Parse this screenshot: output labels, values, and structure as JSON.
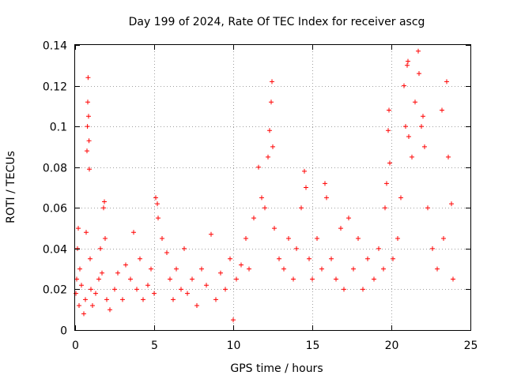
{
  "chart_data": {
    "type": "scatter",
    "title": "Day 199 of 2024, Rate Of TEC Index for receiver ascg",
    "xlabel": "GPS time / hours",
    "ylabel": "ROTI / TECUs",
    "xlim": [
      0,
      25
    ],
    "ylim": [
      0,
      0.14
    ],
    "xticks": [
      0,
      5,
      10,
      15,
      20,
      25
    ],
    "xtick_labels": [
      "0",
      "5",
      "10",
      "15",
      "20",
      "25"
    ],
    "yticks": [
      0,
      0.02,
      0.04,
      0.06,
      0.08,
      0.1,
      0.12,
      0.14
    ],
    "ytick_labels": [
      "0",
      "0.02",
      "0.04",
      "0.06",
      "0.08",
      "0.1",
      "0.12",
      "0.14"
    ],
    "grid": true,
    "marker": "plus",
    "color": "#ff0000",
    "series": [
      {
        "name": "ROTI",
        "points": [
          [
            0.05,
            0.018
          ],
          [
            0.1,
            0.025
          ],
          [
            0.15,
            0.04
          ],
          [
            0.2,
            0.05
          ],
          [
            0.25,
            0.012
          ],
          [
            0.3,
            0.03
          ],
          [
            0.4,
            0.022
          ],
          [
            0.55,
            0.008
          ],
          [
            0.65,
            0.015
          ],
          [
            0.7,
            0.048
          ],
          [
            0.75,
            0.088
          ],
          [
            0.78,
            0.1
          ],
          [
            0.8,
            0.112
          ],
          [
            0.82,
            0.124
          ],
          [
            0.85,
            0.105
          ],
          [
            0.88,
            0.093
          ],
          [
            0.9,
            0.079
          ],
          [
            0.95,
            0.035
          ],
          [
            1.0,
            0.02
          ],
          [
            1.1,
            0.012
          ],
          [
            1.3,
            0.018
          ],
          [
            1.5,
            0.025
          ],
          [
            1.6,
            0.04
          ],
          [
            1.7,
            0.028
          ],
          [
            1.8,
            0.06
          ],
          [
            1.85,
            0.063
          ],
          [
            1.9,
            0.045
          ],
          [
            2.0,
            0.015
          ],
          [
            2.2,
            0.01
          ],
          [
            2.5,
            0.02
          ],
          [
            2.7,
            0.028
          ],
          [
            3.0,
            0.015
          ],
          [
            3.2,
            0.032
          ],
          [
            3.5,
            0.025
          ],
          [
            3.7,
            0.048
          ],
          [
            3.9,
            0.02
          ],
          [
            4.1,
            0.035
          ],
          [
            4.3,
            0.015
          ],
          [
            4.6,
            0.022
          ],
          [
            4.8,
            0.03
          ],
          [
            5.0,
            0.018
          ],
          [
            5.1,
            0.065
          ],
          [
            5.2,
            0.062
          ],
          [
            5.25,
            0.055
          ],
          [
            5.5,
            0.045
          ],
          [
            5.8,
            0.038
          ],
          [
            6.0,
            0.025
          ],
          [
            6.2,
            0.015
          ],
          [
            6.4,
            0.03
          ],
          [
            6.7,
            0.02
          ],
          [
            6.9,
            0.04
          ],
          [
            7.1,
            0.018
          ],
          [
            7.4,
            0.025
          ],
          [
            7.7,
            0.012
          ],
          [
            8.0,
            0.03
          ],
          [
            8.3,
            0.022
          ],
          [
            8.6,
            0.047
          ],
          [
            8.9,
            0.015
          ],
          [
            9.2,
            0.028
          ],
          [
            9.5,
            0.02
          ],
          [
            9.8,
            0.035
          ],
          [
            10.0,
            0.005
          ],
          [
            10.2,
            0.025
          ],
          [
            10.5,
            0.032
          ],
          [
            10.8,
            0.045
          ],
          [
            11.0,
            0.03
          ],
          [
            11.3,
            0.055
          ],
          [
            11.6,
            0.08
          ],
          [
            11.8,
            0.065
          ],
          [
            12.0,
            0.06
          ],
          [
            12.2,
            0.085
          ],
          [
            12.3,
            0.098
          ],
          [
            12.4,
            0.112
          ],
          [
            12.45,
            0.122
          ],
          [
            12.5,
            0.09
          ],
          [
            12.6,
            0.05
          ],
          [
            12.9,
            0.035
          ],
          [
            13.2,
            0.03
          ],
          [
            13.5,
            0.045
          ],
          [
            13.8,
            0.025
          ],
          [
            14.0,
            0.04
          ],
          [
            14.3,
            0.06
          ],
          [
            14.5,
            0.078
          ],
          [
            14.6,
            0.07
          ],
          [
            14.8,
            0.035
          ],
          [
            15.0,
            0.025
          ],
          [
            15.3,
            0.045
          ],
          [
            15.6,
            0.03
          ],
          [
            15.8,
            0.072
          ],
          [
            15.9,
            0.065
          ],
          [
            16.2,
            0.035
          ],
          [
            16.5,
            0.025
          ],
          [
            16.8,
            0.05
          ],
          [
            17.0,
            0.02
          ],
          [
            17.3,
            0.055
          ],
          [
            17.6,
            0.03
          ],
          [
            17.9,
            0.045
          ],
          [
            18.2,
            0.02
          ],
          [
            18.5,
            0.035
          ],
          [
            18.9,
            0.025
          ],
          [
            19.2,
            0.04
          ],
          [
            19.5,
            0.03
          ],
          [
            19.6,
            0.06
          ],
          [
            19.7,
            0.072
          ],
          [
            19.8,
            0.098
          ],
          [
            19.85,
            0.108
          ],
          [
            19.9,
            0.082
          ],
          [
            20.1,
            0.035
          ],
          [
            20.4,
            0.045
          ],
          [
            20.6,
            0.065
          ],
          [
            20.8,
            0.12
          ],
          [
            20.9,
            0.1
          ],
          [
            21.0,
            0.13
          ],
          [
            21.05,
            0.132
          ],
          [
            21.1,
            0.095
          ],
          [
            21.3,
            0.085
          ],
          [
            21.5,
            0.112
          ],
          [
            21.7,
            0.137
          ],
          [
            21.75,
            0.126
          ],
          [
            21.9,
            0.1
          ],
          [
            22.0,
            0.105
          ],
          [
            22.1,
            0.09
          ],
          [
            22.3,
            0.06
          ],
          [
            22.6,
            0.04
          ],
          [
            22.9,
            0.03
          ],
          [
            23.2,
            0.108
          ],
          [
            23.3,
            0.045
          ],
          [
            23.5,
            0.122
          ],
          [
            23.6,
            0.085
          ],
          [
            23.8,
            0.062
          ],
          [
            23.9,
            0.025
          ]
        ]
      }
    ]
  }
}
